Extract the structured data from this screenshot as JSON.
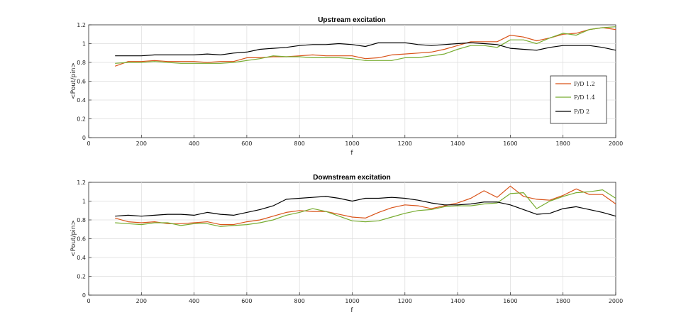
{
  "chart_data": [
    {
      "type": "line",
      "title": "Upstream excitation",
      "xlabel": "f",
      "ylabel": "<Pout/pin>",
      "xlim": [
        0,
        2000
      ],
      "ylim": [
        0,
        1.2
      ],
      "xticks": [
        "0",
        "200",
        "400",
        "600",
        "800",
        "1000",
        "1200",
        "1400",
        "1600",
        "1800",
        "2000"
      ],
      "yticks": [
        "0",
        "0.2",
        "0.4",
        "0.6",
        "0.8",
        "1",
        "1.2"
      ],
      "grid": true,
      "legend": {
        "placement": "right",
        "entries": [
          "P/D 1.2",
          "P/D 1.4",
          "P/D 2"
        ]
      },
      "x": [
        100,
        150,
        200,
        250,
        300,
        350,
        400,
        450,
        500,
        550,
        600,
        650,
        700,
        750,
        800,
        850,
        900,
        950,
        1000,
        1050,
        1100,
        1150,
        1200,
        1250,
        1300,
        1350,
        1400,
        1450,
        1500,
        1550,
        1600,
        1650,
        1700,
        1750,
        1800,
        1850,
        1900,
        1950,
        2000
      ],
      "series": [
        {
          "name": "P/D 1.2",
          "color": "#d95319",
          "values": [
            0.76,
            0.81,
            0.81,
            0.82,
            0.81,
            0.81,
            0.81,
            0.8,
            0.81,
            0.81,
            0.85,
            0.85,
            0.86,
            0.86,
            0.87,
            0.88,
            0.87,
            0.87,
            0.87,
            0.84,
            0.85,
            0.88,
            0.89,
            0.9,
            0.91,
            0.94,
            0.98,
            1.02,
            1.02,
            1.02,
            1.09,
            1.07,
            1.03,
            1.06,
            1.1,
            1.11,
            1.15,
            1.17,
            1.15
          ]
        },
        {
          "name": "P/D 1.4",
          "color": "#77ac30",
          "values": [
            0.79,
            0.8,
            0.8,
            0.81,
            0.8,
            0.79,
            0.79,
            0.79,
            0.79,
            0.8,
            0.82,
            0.84,
            0.87,
            0.86,
            0.86,
            0.85,
            0.85,
            0.85,
            0.84,
            0.82,
            0.82,
            0.82,
            0.85,
            0.85,
            0.87,
            0.89,
            0.94,
            0.98,
            0.98,
            0.96,
            1.04,
            1.04,
            1.0,
            1.06,
            1.11,
            1.09,
            1.15,
            1.17,
            1.18
          ]
        },
        {
          "name": "P/D 2",
          "color": "#000000",
          "values": [
            0.87,
            0.87,
            0.87,
            0.88,
            0.88,
            0.88,
            0.88,
            0.89,
            0.88,
            0.9,
            0.91,
            0.94,
            0.95,
            0.96,
            0.98,
            0.99,
            0.99,
            1.0,
            0.99,
            0.97,
            1.01,
            1.01,
            1.01,
            0.99,
            0.98,
            0.99,
            1.0,
            1.01,
            1.0,
            0.99,
            0.95,
            0.94,
            0.93,
            0.96,
            0.98,
            0.98,
            0.98,
            0.96,
            0.93
          ]
        }
      ]
    },
    {
      "type": "line",
      "title": "Downstream excitation",
      "xlabel": "f",
      "ylabel": "<Pout/pin>",
      "xlim": [
        0,
        2000
      ],
      "ylim": [
        0,
        1.2
      ],
      "xticks": [
        "0",
        "200",
        "400",
        "600",
        "800",
        "1000",
        "1200",
        "1400",
        "1600",
        "1800",
        "2000"
      ],
      "yticks": [
        "0",
        "0.2",
        "0.4",
        "0.6",
        "0.8",
        "1",
        "1.2"
      ],
      "grid": true,
      "x": [
        100,
        150,
        200,
        250,
        300,
        350,
        400,
        450,
        500,
        550,
        600,
        650,
        700,
        750,
        800,
        850,
        900,
        950,
        1000,
        1050,
        1100,
        1150,
        1200,
        1250,
        1300,
        1350,
        1400,
        1450,
        1500,
        1550,
        1600,
        1650,
        1700,
        1750,
        1800,
        1850,
        1900,
        1950,
        2000
      ],
      "series": [
        {
          "name": "P/D 1.2",
          "color": "#d95319",
          "values": [
            0.82,
            0.78,
            0.77,
            0.78,
            0.76,
            0.76,
            0.77,
            0.78,
            0.75,
            0.75,
            0.78,
            0.8,
            0.84,
            0.88,
            0.9,
            0.89,
            0.89,
            0.86,
            0.83,
            0.82,
            0.88,
            0.93,
            0.96,
            0.95,
            0.92,
            0.95,
            0.98,
            1.03,
            1.11,
            1.04,
            1.16,
            1.05,
            1.02,
            1.01,
            1.06,
            1.13,
            1.07,
            1.07,
            0.97
          ]
        },
        {
          "name": "P/D 1.4",
          "color": "#77ac30",
          "values": [
            0.77,
            0.76,
            0.75,
            0.77,
            0.77,
            0.74,
            0.76,
            0.76,
            0.73,
            0.74,
            0.75,
            0.77,
            0.8,
            0.85,
            0.88,
            0.92,
            0.89,
            0.84,
            0.79,
            0.78,
            0.79,
            0.83,
            0.87,
            0.9,
            0.91,
            0.94,
            0.95,
            0.95,
            0.97,
            0.98,
            1.08,
            1.09,
            0.92,
            1.0,
            1.05,
            1.09,
            1.1,
            1.12,
            1.03
          ]
        },
        {
          "name": "P/D 2",
          "color": "#000000",
          "values": [
            0.84,
            0.85,
            0.84,
            0.85,
            0.86,
            0.86,
            0.85,
            0.88,
            0.86,
            0.85,
            0.88,
            0.91,
            0.95,
            1.02,
            1.03,
            1.04,
            1.05,
            1.03,
            1.0,
            1.03,
            1.03,
            1.04,
            1.03,
            1.01,
            0.98,
            0.96,
            0.96,
            0.97,
            0.99,
            0.99,
            0.96,
            0.91,
            0.86,
            0.87,
            0.92,
            0.94,
            0.91,
            0.88,
            0.84
          ]
        }
      ]
    }
  ]
}
